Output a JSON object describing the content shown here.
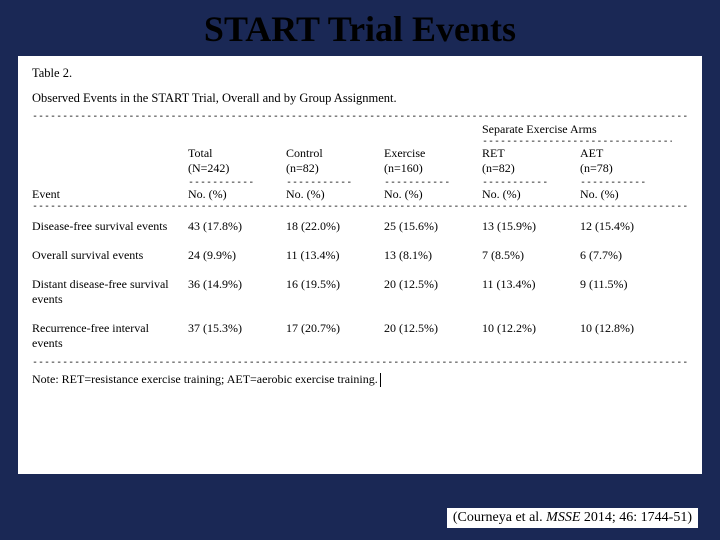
{
  "slide": {
    "title": "START Trial Events",
    "background_color": "#1a2855",
    "title_color": "#000000",
    "title_fontsize": 36
  },
  "table": {
    "label": "Table 2.",
    "caption": "Observed Events in the START Trial, Overall and by Group Assignment.",
    "sep_arms_header": "Separate Exercise Arms",
    "columns": [
      {
        "name": "Total",
        "n": "(N=242)"
      },
      {
        "name": "Control",
        "n": "(n=82)"
      },
      {
        "name": "Exercise",
        "n": "(n=160)"
      },
      {
        "name": "RET",
        "n": "(n=82)"
      },
      {
        "name": "AET",
        "n": "(n=78)"
      }
    ],
    "event_col_label": "Event",
    "subheader": "No. (%)",
    "rows": [
      {
        "label": "Disease-free survival events",
        "vals": [
          "43 (17.8%)",
          "18 (22.0%)",
          "25 (15.6%)",
          "13 (15.9%)",
          "12 (15.4%)"
        ]
      },
      {
        "label": "Overall survival events",
        "vals": [
          "24 (9.9%)",
          "11 (13.4%)",
          "13 (8.1%)",
          "7 (8.5%)",
          "6 (7.7%)"
        ]
      },
      {
        "label": "Distant disease-free survival events",
        "vals": [
          "36 (14.9%)",
          "16 (19.5%)",
          "20 (12.5%)",
          "11 (13.4%)",
          "9 (11.5%)"
        ]
      },
      {
        "label": "Recurrence-free interval events",
        "vals": [
          "37 (15.3%)",
          "17 (20.7%)",
          "20 (12.5%)",
          "10 (12.2%)",
          "10 (12.8%)"
        ]
      }
    ],
    "note": "Note: RET=resistance exercise training; AET=aerobic exercise training.",
    "panel_bg": "#ffffff",
    "text_color": "#000000",
    "font_family": "Times New Roman",
    "body_fontsize": 12
  },
  "citation": {
    "prefix": "(Courneya et al.  ",
    "journal": "MSSE",
    "suffix": " 2014; 46: 1744-51)",
    "bg": "#ffffff",
    "fontsize": 14
  },
  "dash": {
    "full": "-----------------------------------------------------------------------------------------------------------------------------------------------------",
    "short": "-----------",
    "arms": "-------------------------------------"
  }
}
